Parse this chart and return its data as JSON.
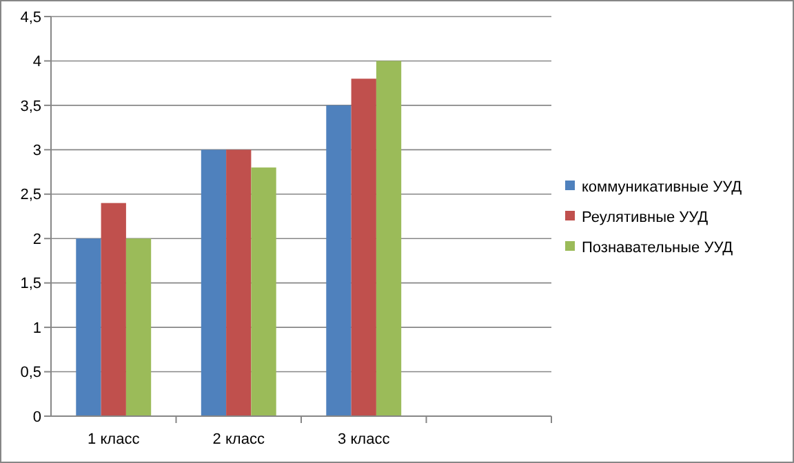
{
  "chart_data": {
    "type": "bar",
    "categories": [
      "1 класс",
      "2 класс",
      "3 класс",
      null
    ],
    "series": [
      {
        "name": "коммуникативные  УУД",
        "color": "#4f81bd",
        "values": [
          2,
          3,
          3.5,
          null
        ]
      },
      {
        "name": "Реулятивные  УУД",
        "color": "#c0504d",
        "values": [
          2.4,
          3,
          3.8,
          null
        ]
      },
      {
        "name": "Познавательные УУД",
        "color": "#9bbb59",
        "values": [
          2,
          2.8,
          4,
          null
        ]
      }
    ],
    "ylim": [
      0,
      4.5
    ],
    "yticks": [
      0,
      {
        "value": 0.5,
        "label": "0,5"
      },
      1,
      {
        "value": 1.5,
        "label": "1,5"
      },
      2,
      {
        "value": 2.5,
        "label": "2,5"
      },
      3,
      {
        "value": 3.5,
        "label": "3,5"
      },
      4,
      {
        "value": 4.5,
        "label": "4,5"
      }
    ],
    "grid": "y",
    "legend": "right"
  }
}
